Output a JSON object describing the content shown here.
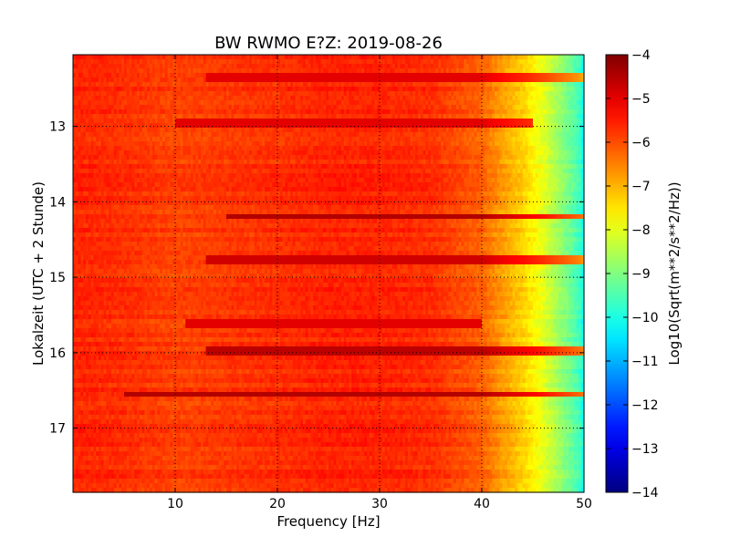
{
  "chart_data": {
    "type": "heatmap",
    "title": "BW RWMO E?Z: 2019-08-26",
    "xlabel": "Frequency [Hz]",
    "ylabel": "Lokalzeit (UTC + 2 Stunde)",
    "xlim": [
      0,
      50
    ],
    "ylim": [
      12.05,
      17.85
    ],
    "y_inverted": true,
    "x_ticks": [
      10,
      20,
      30,
      40,
      50
    ],
    "x_tick_labels": [
      "10",
      "20",
      "30",
      "40",
      "50"
    ],
    "y_ticks": [
      13,
      14,
      15,
      16,
      17
    ],
    "y_tick_labels": [
      "13",
      "14",
      "15",
      "16",
      "17"
    ],
    "grid": true,
    "colormap": "jet",
    "colorbar": {
      "label": "Log10(Sqrt(m**2/s**2/Hz))",
      "range": [
        -14,
        -4
      ],
      "ticks": [
        -4,
        -5,
        -6,
        -7,
        -8,
        -9,
        -10,
        -11,
        -12,
        -13,
        -14
      ],
      "tick_labels": [
        "−4",
        "−5",
        "−6",
        "−7",
        "−8",
        "−9",
        "−10",
        "−11",
        "−12",
        "−13",
        "−14"
      ]
    },
    "spectral_profile": {
      "frequency_hz": [
        0,
        5,
        10,
        15,
        20,
        25,
        30,
        35,
        40,
        42,
        44,
        46,
        48,
        49.5,
        50
      ],
      "log10_amplitude": [
        -5.6,
        -5.7,
        -5.9,
        -5.8,
        -5.7,
        -5.6,
        -5.6,
        -5.7,
        -6.2,
        -6.8,
        -7.3,
        -8.0,
        -8.9,
        -9.6,
        -10.2
      ]
    },
    "strong_time_bands": [
      {
        "time": 12.35,
        "from_hz": 13,
        "to_hz": 50,
        "level": -5.0
      },
      {
        "time": 12.97,
        "from_hz": 10,
        "to_hz": 45,
        "level": -5.0
      },
      {
        "time": 14.2,
        "from_hz": 15,
        "to_hz": 50,
        "level": -4.5
      },
      {
        "time": 14.76,
        "from_hz": 13,
        "to_hz": 50,
        "level": -4.8
      },
      {
        "time": 15.6,
        "from_hz": 11,
        "to_hz": 40,
        "level": -5.0
      },
      {
        "time": 16.0,
        "from_hz": 13,
        "to_hz": 50,
        "level": -4.6
      },
      {
        "time": 16.55,
        "from_hz": 5,
        "to_hz": 50,
        "level": -4.5
      }
    ]
  }
}
